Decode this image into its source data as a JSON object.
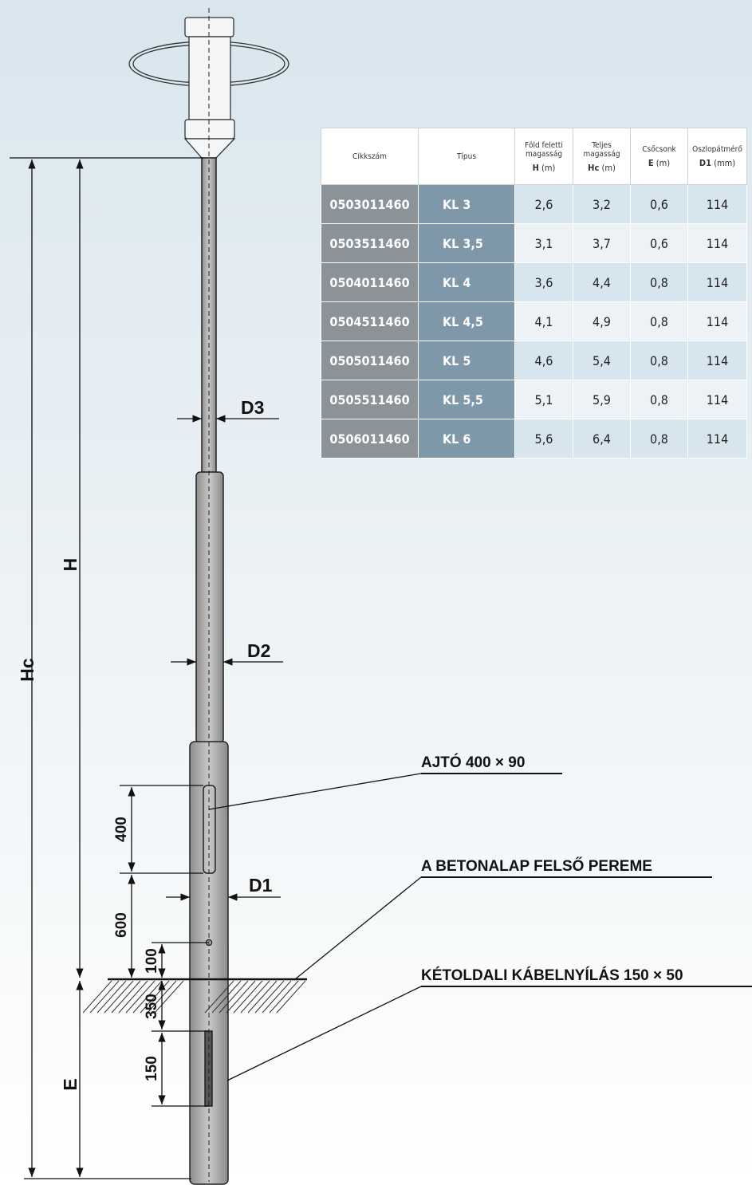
{
  "table": {
    "header": [
      {
        "label": "Cikkszám"
      },
      {
        "label": "Típus"
      },
      {
        "label": "Föld feletti magasság",
        "symbol": "H",
        "unit": "(m)"
      },
      {
        "label": "Teljes magasság",
        "symbol": "Hc",
        "unit": "(m)"
      },
      {
        "label": "Csőcsonk",
        "symbol": "E",
        "unit": "(m)"
      },
      {
        "label": "Oszlopátmérő",
        "symbol": "D1",
        "unit": "(mm)"
      }
    ],
    "rows": [
      [
        "0503011460",
        "KL 3",
        "2,6",
        "3,2",
        "0,6",
        "114"
      ],
      [
        "0503511460",
        "KL 3,5",
        "3,1",
        "3,7",
        "0,6",
        "114"
      ],
      [
        "0504011460",
        "KL 4",
        "3,6",
        "4,4",
        "0,8",
        "114"
      ],
      [
        "0504511460",
        "KL 4,5",
        "4,1",
        "4,9",
        "0,8",
        "114"
      ],
      [
        "0505011460",
        "KL 5",
        "4,6",
        "5,4",
        "0,8",
        "114"
      ],
      [
        "0505511460",
        "KL 5,5",
        "5,1",
        "5,9",
        "0,8",
        "114"
      ],
      [
        "0506011460",
        "KL 6",
        "5,6",
        "6,4",
        "0,8",
        "114"
      ]
    ]
  },
  "drawing": {
    "diameters": [
      "D3",
      "D2",
      "D1"
    ],
    "heights": [
      "Hc",
      "H",
      "E"
    ],
    "distances": [
      "400",
      "600",
      "100",
      "350",
      "150"
    ],
    "callouts": [
      "AJTÓ 400 × 90",
      "A BETONALAP FELSŐ PEREME",
      "KÉTOLDALI KÁBELNYÍLÁS 150 × 50"
    ]
  }
}
